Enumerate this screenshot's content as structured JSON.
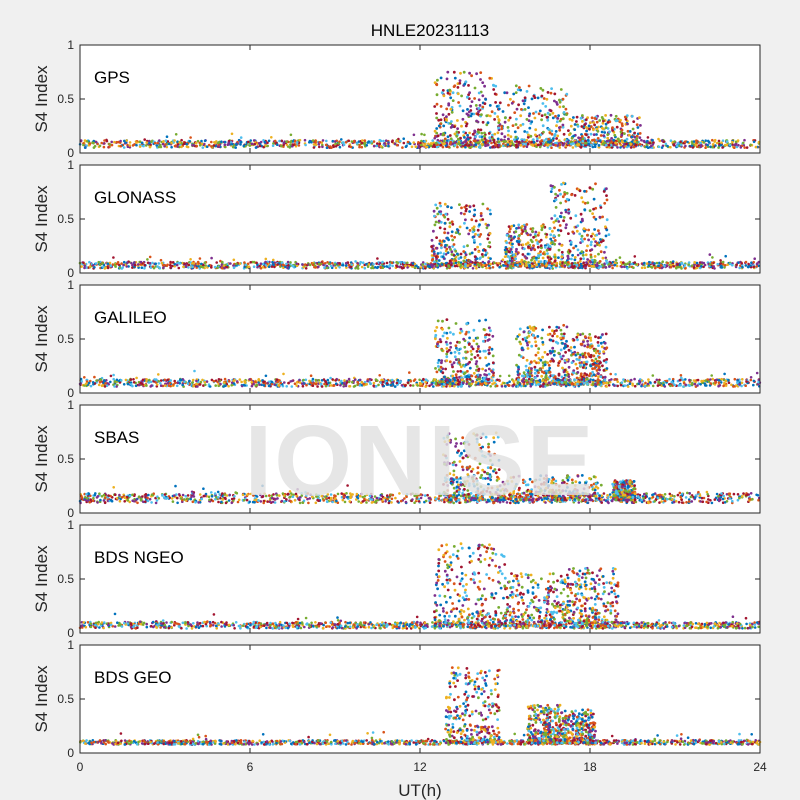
{
  "title": "HNLE20231113",
  "xlabel": "UT(h)",
  "watermark": "IONISE",
  "colors": {
    "figure_background": "#f0f0f0",
    "axes_background": "#ffffff",
    "axis_color": "#262626",
    "watermark_color": "#e0e0e0",
    "series": [
      "#0072bd",
      "#d95319",
      "#edb120",
      "#7e2f8e",
      "#77ac30",
      "#4dbeee",
      "#a2142f"
    ]
  },
  "chart_data": {
    "type": "scatter",
    "title": "HNLE20231113",
    "xlabel": "UT(h)",
    "xlim": [
      0,
      24
    ],
    "xticks": [
      0,
      6,
      12,
      18,
      24
    ],
    "grid": false,
    "panels": [
      {
        "label": "GPS",
        "ylabel": "S4 Index",
        "ylim": [
          0,
          1
        ],
        "yticks": [
          0,
          0.5,
          1
        ],
        "baseline": 0.07,
        "noise": 0.035,
        "activity": [
          {
            "start": 12.5,
            "end": 14.6,
            "peak": 0.75
          },
          {
            "start": 14.6,
            "end": 17.2,
            "peak": 0.63
          },
          {
            "start": 17.2,
            "end": 19.8,
            "peak": 0.35
          }
        ]
      },
      {
        "label": "GLONASS",
        "ylabel": "S4 Index",
        "ylim": [
          0,
          1
        ],
        "yticks": [
          0,
          0.5,
          1
        ],
        "baseline": 0.06,
        "noise": 0.03,
        "activity": [
          {
            "start": 12.4,
            "end": 14.5,
            "peak": 0.65
          },
          {
            "start": 15.0,
            "end": 16.6,
            "peak": 0.45
          },
          {
            "start": 16.6,
            "end": 18.7,
            "peak": 0.84
          }
        ]
      },
      {
        "label": "GALILEO",
        "ylabel": "S4 Index",
        "ylim": [
          0,
          1
        ],
        "yticks": [
          0,
          0.5,
          1
        ],
        "baseline": 0.08,
        "noise": 0.035,
        "activity": [
          {
            "start": 12.5,
            "end": 14.6,
            "peak": 0.68
          },
          {
            "start": 15.4,
            "end": 17.2,
            "peak": 0.63
          },
          {
            "start": 17.0,
            "end": 18.6,
            "peak": 0.55
          }
        ]
      },
      {
        "label": "SBAS",
        "ylabel": "S4 Index",
        "ylim": [
          0,
          1
        ],
        "yticks": [
          0,
          0.5,
          1
        ],
        "baseline": 0.12,
        "noise": 0.045,
        "activity": [
          {
            "start": 12.8,
            "end": 14.8,
            "peak": 0.75
          },
          {
            "start": 14.8,
            "end": 18.4,
            "peak": 0.35
          },
          {
            "start": 18.8,
            "end": 19.6,
            "peak": 0.3
          }
        ]
      },
      {
        "label": "BDS NGEO",
        "ylabel": "S4 Index",
        "ylim": [
          0,
          1
        ],
        "yticks": [
          0,
          0.5,
          1
        ],
        "baseline": 0.06,
        "noise": 0.03,
        "activity": [
          {
            "start": 12.5,
            "end": 15.0,
            "peak": 0.83
          },
          {
            "start": 15.0,
            "end": 17.2,
            "peak": 0.55
          },
          {
            "start": 17.2,
            "end": 19.0,
            "peak": 0.6
          }
        ]
      },
      {
        "label": "BDS GEO",
        "ylabel": "S4 Index",
        "ylim": [
          0,
          1
        ],
        "yticks": [
          0,
          0.5,
          1
        ],
        "baseline": 0.09,
        "noise": 0.02,
        "activity": [
          {
            "start": 12.9,
            "end": 14.8,
            "peak": 0.8
          },
          {
            "start": 15.8,
            "end": 17.0,
            "peak": 0.45
          },
          {
            "start": 17.0,
            "end": 18.2,
            "peak": 0.4
          }
        ]
      }
    ]
  }
}
